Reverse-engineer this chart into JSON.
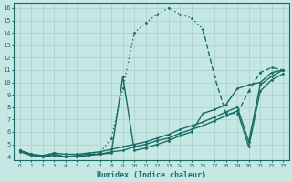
{
  "xlabel": "Humidex (Indice chaleur)",
  "bg_color": "#c5e8e5",
  "grid_color": "#aed4d0",
  "line_color": "#1a6b65",
  "xlim": [
    -0.5,
    23.5
  ],
  "ylim": [
    3.7,
    16.4
  ],
  "xticks": [
    0,
    1,
    2,
    3,
    4,
    5,
    6,
    7,
    8,
    9,
    10,
    11,
    12,
    13,
    14,
    15,
    16,
    17,
    18,
    19,
    20,
    21,
    22,
    23
  ],
  "yticks": [
    4,
    5,
    6,
    7,
    8,
    9,
    10,
    11,
    12,
    13,
    14,
    15,
    16
  ],
  "series": [
    {
      "x": [
        0,
        1,
        2,
        3,
        4,
        5,
        6,
        7,
        8,
        9,
        10,
        11,
        12,
        13,
        14,
        15,
        16
      ],
      "y": [
        4.5,
        4.2,
        4.0,
        4.3,
        4.0,
        4.0,
        4.2,
        4.3,
        5.5,
        9.5,
        14.0,
        14.8,
        15.5,
        16.0,
        15.5,
        15.2,
        14.3
      ],
      "style": "dotted",
      "lw": 1.0
    },
    {
      "x": [
        0,
        1,
        2,
        3,
        4,
        5,
        6,
        7,
        8,
        9,
        10,
        11,
        12,
        13,
        14,
        15,
        16,
        17,
        18,
        19,
        20,
        21,
        22,
        23
      ],
      "y": [
        4.5,
        4.2,
        4.0,
        4.2,
        4.0,
        4.1,
        4.2,
        4.2,
        4.3,
        10.5,
        4.5,
        4.7,
        5.0,
        5.3,
        5.7,
        6.0,
        7.5,
        7.8,
        8.2,
        9.5,
        9.8,
        10.0,
        10.8,
        11.0
      ],
      "style": "solid",
      "lw": 1.0
    },
    {
      "x": [
        0,
        1,
        2,
        3,
        4,
        5,
        6,
        7,
        8,
        9,
        10,
        11,
        12,
        13,
        14,
        15,
        16,
        17,
        18,
        19,
        20,
        21,
        22,
        23
      ],
      "y": [
        4.5,
        4.2,
        4.1,
        4.3,
        4.2,
        4.2,
        4.3,
        4.4,
        4.6,
        4.8,
        5.0,
        5.2,
        5.5,
        5.8,
        6.2,
        6.5,
        6.8,
        7.2,
        7.6,
        8.0,
        5.2,
        9.8,
        10.5,
        11.0
      ],
      "style": "solid",
      "lw": 1.0
    },
    {
      "x": [
        0,
        1,
        2,
        3,
        4,
        5,
        6,
        7,
        8,
        9,
        10,
        11,
        12,
        13,
        14,
        15,
        16,
        17,
        18,
        19,
        20,
        21,
        22,
        23
      ],
      "y": [
        4.4,
        4.1,
        4.0,
        4.1,
        4.0,
        4.0,
        4.1,
        4.2,
        4.4,
        4.5,
        4.8,
        5.0,
        5.3,
        5.5,
        5.9,
        6.2,
        6.5,
        6.9,
        7.3,
        7.7,
        4.8,
        9.3,
        10.2,
        10.7
      ],
      "style": "solid",
      "lw": 1.0
    },
    {
      "x": [
        16,
        17,
        18,
        19,
        20,
        21,
        22,
        23
      ],
      "y": [
        14.3,
        10.5,
        7.5,
        7.5,
        9.3,
        10.8,
        11.2,
        11.0
      ],
      "style": "dashed",
      "lw": 1.0
    }
  ]
}
